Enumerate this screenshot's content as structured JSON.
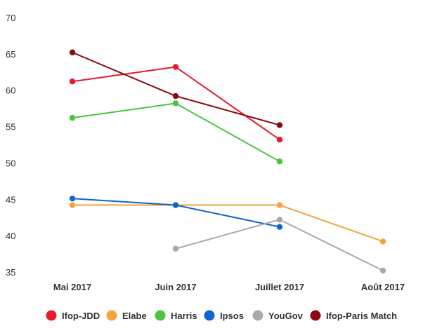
{
  "chart_data": {
    "type": "line",
    "title": "",
    "xlabel": "",
    "ylabel": "",
    "categories": [
      "Mai 2017",
      "Juin 2017",
      "Juillet 2017",
      "Août 2017"
    ],
    "ylim": [
      35,
      70
    ],
    "yticks": [
      35,
      40,
      45,
      50,
      55,
      60,
      65,
      70
    ],
    "grid": false,
    "legend_position": "bottom",
    "series": [
      {
        "name": "Ifop-JDD",
        "color": "#e8192c",
        "values": [
          61.3,
          63.3,
          53.3,
          null
        ]
      },
      {
        "name": "Elabe",
        "color": "#f4a23c",
        "values": [
          44.3,
          44.3,
          44.3,
          39.3
        ]
      },
      {
        "name": "Harris",
        "color": "#49c43e",
        "values": [
          56.3,
          58.3,
          50.3,
          null
        ]
      },
      {
        "name": "Ipsos",
        "color": "#0f63d3",
        "values": [
          45.2,
          44.3,
          41.3,
          null
        ]
      },
      {
        "name": "YouGov",
        "color": "#a9a9a9",
        "values": [
          null,
          38.3,
          42.3,
          35.3
        ]
      },
      {
        "name": "Ifop-Paris Match",
        "color": "#8a0a0d",
        "values": [
          65.3,
          59.3,
          55.3,
          null
        ]
      }
    ]
  }
}
